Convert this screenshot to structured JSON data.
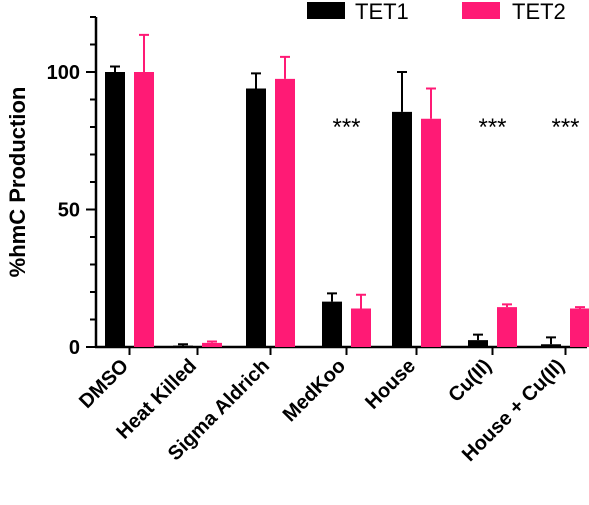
{
  "chart_data": {
    "type": "bar",
    "title": "",
    "xlabel": "",
    "ylabel": "%hmC Production",
    "ylim": [
      0,
      120
    ],
    "yticks": [
      0,
      50,
      100
    ],
    "grid": false,
    "legend_position": "top-right",
    "categories": [
      "DMSO",
      "Heat Killed",
      "Sigma Aldrich",
      "MedKoo",
      "House",
      "Cu(II)",
      "House + Cu(II)"
    ],
    "series": [
      {
        "name": "TET1",
        "color": "#000000",
        "values": [
          100,
          0.5,
          94,
          16.5,
          85.5,
          2.5,
          1
        ],
        "errors": [
          2,
          0.5,
          5.5,
          3,
          14.5,
          2,
          2.5
        ]
      },
      {
        "name": "TET2",
        "color": "#ff1a75",
        "values": [
          100,
          1.5,
          97.5,
          14,
          83,
          14.5,
          14
        ],
        "errors": [
          13.5,
          0.5,
          8,
          5,
          11,
          1,
          0.5
        ]
      }
    ],
    "annotations": [
      {
        "category": "MedKoo",
        "text": "***"
      },
      {
        "category": "Cu(II)",
        "text": "***"
      },
      {
        "category": "House + Cu(II)",
        "text": "***"
      }
    ]
  }
}
